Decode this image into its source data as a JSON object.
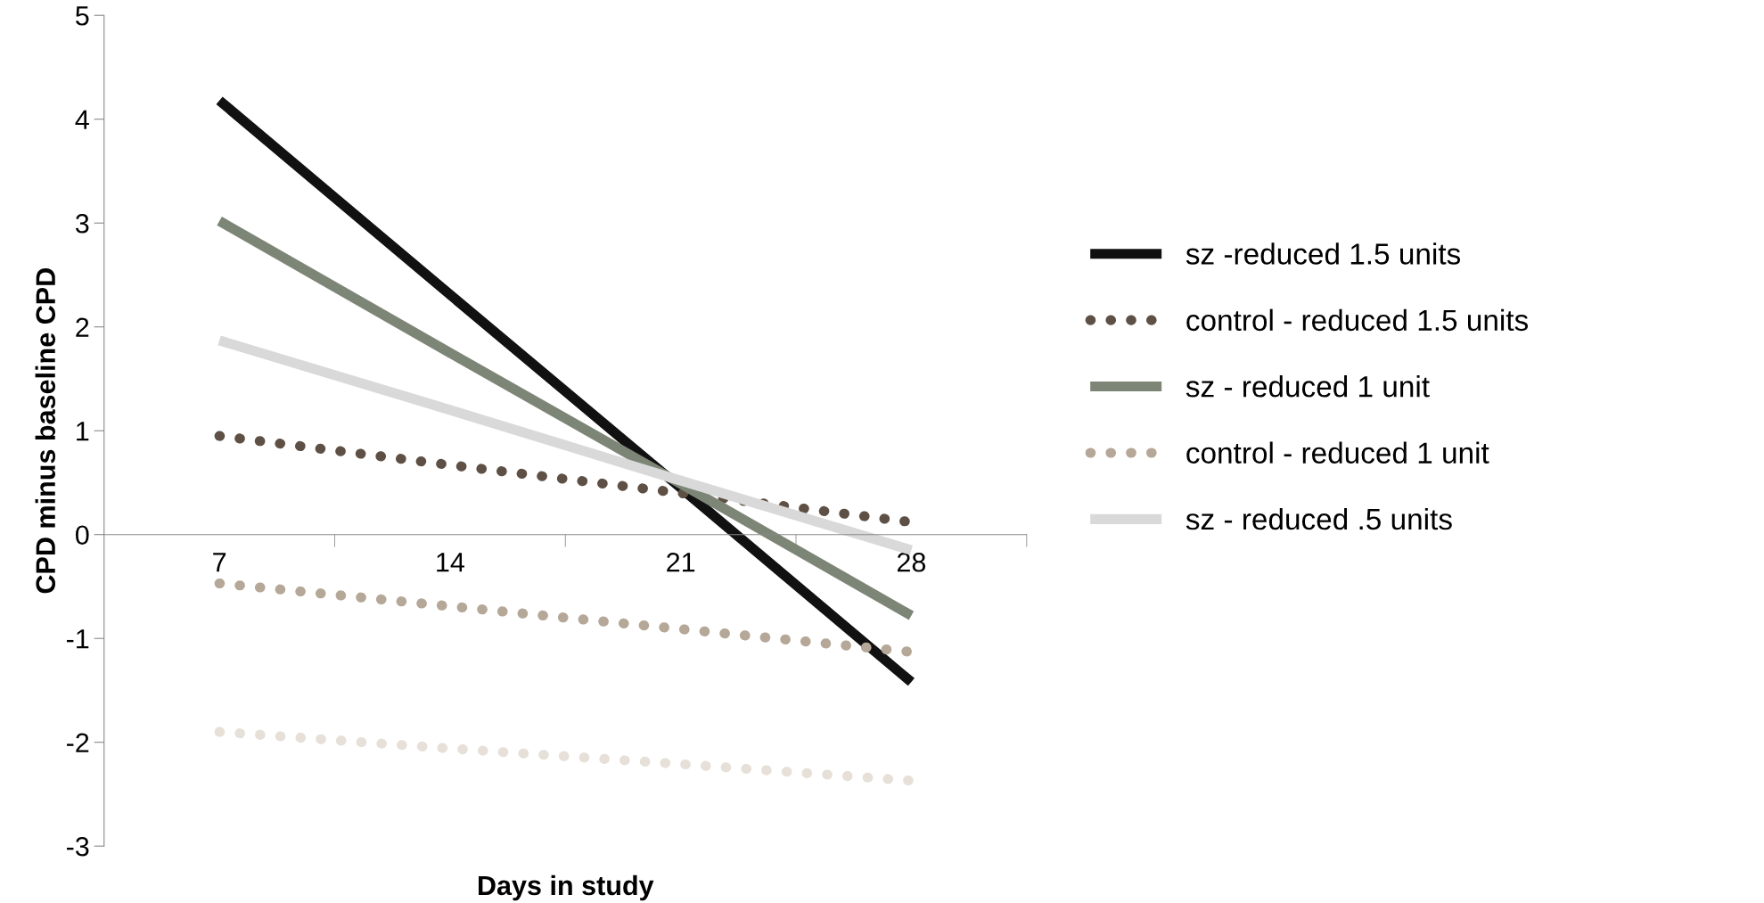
{
  "chart_data": {
    "type": "line",
    "xlabel": "Days in study",
    "ylabel": "CPD minus baseline CPD",
    "categories": [
      "7",
      "14",
      "21",
      "28"
    ],
    "ylim": [
      -3,
      5
    ],
    "yticks": [
      -3,
      -2,
      -1,
      0,
      1,
      2,
      3,
      4,
      5
    ],
    "grid": false,
    "legend": "right",
    "marker": "none",
    "series": [
      {
        "name": "sz -reduced 1.5 units",
        "color": "#111111",
        "values": [
          4.18,
          2.31,
          0.45,
          -1.42
        ],
        "line_style": "solid"
      },
      {
        "name": "control - reduced 1.5 units",
        "color": "#5e5045",
        "values": [
          0.95,
          0.67,
          0.4,
          0.12
        ],
        "line_style": "dotted"
      },
      {
        "name": "sz - reduced 1 unit",
        "color": "#7d8676",
        "values": [
          3.02,
          1.75,
          0.49,
          -0.78
        ],
        "line_style": "solid"
      },
      {
        "name": "control - reduced 1 unit",
        "color": "#b5a898",
        "values": [
          -0.47,
          -0.69,
          -0.91,
          -1.13
        ],
        "line_style": "dotted"
      },
      {
        "name": "sz - reduced .5 units",
        "color": "#d9d9d9",
        "values": [
          1.87,
          1.2,
          0.52,
          -0.15
        ],
        "line_style": "solid"
      },
      {
        "color": "#e6e0d8",
        "values": [
          -1.9,
          -2.06,
          -2.21,
          -2.37
        ],
        "line_style": "dotted"
      }
    ]
  }
}
